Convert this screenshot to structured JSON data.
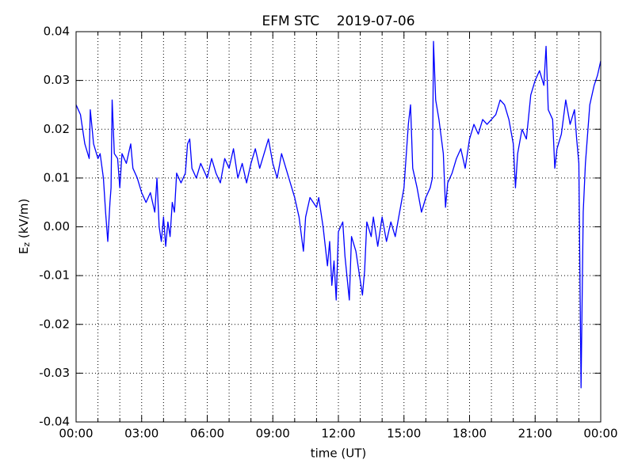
{
  "chart_data": {
    "type": "line",
    "title": "EFM STC    2019-07-06",
    "xlabel": "time (UT)",
    "ylabel": [
      "E",
      "z",
      " (kV/m)"
    ],
    "x": [
      0.0,
      0.2,
      0.4,
      0.6,
      0.65,
      0.8,
      1.0,
      1.1,
      1.25,
      1.35,
      1.45,
      1.55,
      1.6,
      1.65,
      1.75,
      1.9,
      2.0,
      2.1,
      2.3,
      2.4,
      2.5,
      2.6,
      2.8,
      3.0,
      3.2,
      3.4,
      3.6,
      3.7,
      3.8,
      3.9,
      4.0,
      4.1,
      4.2,
      4.3,
      4.4,
      4.5,
      4.6,
      4.8,
      5.0,
      5.1,
      5.2,
      5.3,
      5.5,
      5.7,
      6.0,
      6.2,
      6.4,
      6.6,
      6.8,
      7.0,
      7.2,
      7.4,
      7.6,
      7.8,
      8.0,
      8.2,
      8.4,
      8.6,
      8.8,
      9.0,
      9.2,
      9.4,
      9.6,
      9.8,
      10.0,
      10.2,
      10.4,
      10.5,
      10.7,
      11.0,
      11.1,
      11.3,
      11.5,
      11.6,
      11.7,
      11.8,
      11.9,
      12.0,
      12.2,
      12.3,
      12.5,
      12.6,
      12.8,
      13.0,
      13.1,
      13.2,
      13.3,
      13.5,
      13.6,
      13.8,
      14.0,
      14.2,
      14.4,
      14.6,
      14.8,
      15.0,
      15.2,
      15.3,
      15.4,
      15.6,
      15.8,
      16.0,
      16.2,
      16.3,
      16.35,
      16.45,
      16.6,
      16.8,
      16.9,
      17.0,
      17.2,
      17.4,
      17.6,
      17.8,
      18.0,
      18.2,
      18.4,
      18.6,
      18.8,
      19.0,
      19.2,
      19.4,
      19.6,
      19.8,
      20.0,
      20.1,
      20.2,
      20.4,
      20.6,
      20.8,
      21.0,
      21.2,
      21.4,
      21.5,
      21.6,
      21.8,
      21.9,
      22.0,
      22.2,
      22.4,
      22.6,
      22.8,
      22.9,
      23.0,
      23.1,
      23.2,
      23.3,
      23.5,
      23.7,
      23.85,
      24.0
    ],
    "series": [
      {
        "color": "#0000ff",
        "values": [
          0.025,
          0.023,
          0.017,
          0.014,
          0.024,
          0.017,
          0.014,
          0.015,
          0.01,
          0.003,
          -0.003,
          0.005,
          0.008,
          0.026,
          0.015,
          0.014,
          0.008,
          0.015,
          0.013,
          0.015,
          0.017,
          0.012,
          0.01,
          0.007,
          0.005,
          0.007,
          0.003,
          0.01,
          0.0,
          -0.003,
          0.002,
          -0.004,
          0.001,
          -0.002,
          0.005,
          0.003,
          0.011,
          0.009,
          0.011,
          0.017,
          0.018,
          0.012,
          0.01,
          0.013,
          0.01,
          0.014,
          0.011,
          0.009,
          0.014,
          0.012,
          0.016,
          0.01,
          0.013,
          0.009,
          0.013,
          0.016,
          0.012,
          0.015,
          0.018,
          0.013,
          0.01,
          0.015,
          0.012,
          0.009,
          0.006,
          0.002,
          -0.005,
          0.002,
          0.006,
          0.004,
          0.006,
          0.0,
          -0.008,
          -0.003,
          -0.012,
          -0.007,
          -0.015,
          -0.001,
          0.001,
          -0.006,
          -0.015,
          -0.002,
          -0.005,
          -0.011,
          -0.014,
          -0.009,
          0.001,
          -0.002,
          0.002,
          -0.004,
          0.002,
          -0.003,
          0.001,
          -0.002,
          0.003,
          0.008,
          0.021,
          0.025,
          0.012,
          0.008,
          0.003,
          0.006,
          0.008,
          0.01,
          0.038,
          0.026,
          0.022,
          0.015,
          0.004,
          0.009,
          0.011,
          0.014,
          0.016,
          0.012,
          0.018,
          0.021,
          0.019,
          0.022,
          0.021,
          0.022,
          0.023,
          0.026,
          0.025,
          0.022,
          0.017,
          0.008,
          0.015,
          0.02,
          0.018,
          0.027,
          0.03,
          0.032,
          0.029,
          0.037,
          0.024,
          0.022,
          0.012,
          0.016,
          0.019,
          0.026,
          0.021,
          0.024,
          0.018,
          0.013,
          -0.033,
          0.003,
          0.013,
          0.025,
          0.029,
          0.031,
          0.034
        ]
      }
    ],
    "xlim": [
      0,
      24
    ],
    "xticks": [
      {
        "value": 0,
        "label": "00:00"
      },
      {
        "value": 3,
        "label": "03:00"
      },
      {
        "value": 6,
        "label": "06:00"
      },
      {
        "value": 9,
        "label": "09:00"
      },
      {
        "value": 12,
        "label": "12:00"
      },
      {
        "value": 15,
        "label": "15:00"
      },
      {
        "value": 18,
        "label": "18:00"
      },
      {
        "value": 21,
        "label": "21:00"
      },
      {
        "value": 24,
        "label": "00:00"
      }
    ],
    "xminorticks": [
      1,
      2,
      4,
      5,
      7,
      8,
      10,
      11,
      13,
      14,
      16,
      17,
      19,
      20,
      22,
      23
    ],
    "ylim": [
      -0.04,
      0.04
    ],
    "yticks": [
      -0.04,
      -0.03,
      -0.02,
      -0.01,
      {
        "value": 0,
        "label": "0.00"
      },
      0.01,
      0.02,
      0.03,
      0.04
    ],
    "grid": true
  }
}
